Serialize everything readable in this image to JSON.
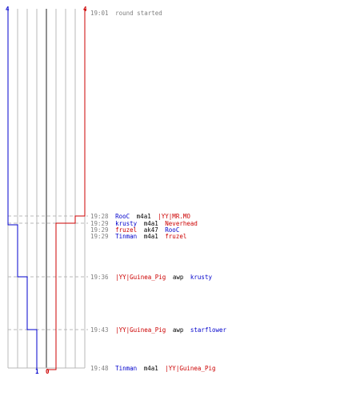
{
  "colors": {
    "blue": "#0000cc",
    "red": "#cc0000",
    "time": "#808080",
    "grid": "#b8b8b8",
    "center": "#606060"
  },
  "score_labels": {
    "blue_start": "4",
    "red_start": "4",
    "blue_end": "1",
    "red_end": "0"
  },
  "events": [
    {
      "time": "19:01",
      "text": "round started"
    },
    {
      "time": "19:28",
      "killer": "RooC",
      "killer_team": "blue",
      "weapon": "m4a1",
      "victim": "|YY|MR.MO",
      "victim_team": "red"
    },
    {
      "time": "19:29",
      "killer": "krusty",
      "killer_team": "blue",
      "weapon": "m4a1",
      "victim": "Neverhead",
      "victim_team": "red"
    },
    {
      "time": "19:29",
      "killer": "fruzel",
      "killer_team": "red",
      "weapon": "ak47",
      "victim": "RooC",
      "victim_team": "blue"
    },
    {
      "time": "19:29",
      "killer": "Tinman",
      "killer_team": "blue",
      "weapon": "m4a1",
      "victim": "fruzel",
      "victim_team": "red"
    },
    {
      "time": "19:36",
      "killer": "|YY|Guinea_Pig",
      "killer_team": "red",
      "weapon": "awp",
      "victim": "krusty",
      "victim_team": "blue"
    },
    {
      "time": "19:43",
      "killer": "|YY|Guinea_Pig",
      "killer_team": "red",
      "weapon": "awp",
      "victim": "starflower",
      "victim_team": "blue"
    },
    {
      "time": "19:48",
      "killer": "Tinman",
      "killer_team": "blue",
      "weapon": "m4a1",
      "victim": "|YY|Guinea_Pig",
      "victim_team": "red"
    }
  ]
}
